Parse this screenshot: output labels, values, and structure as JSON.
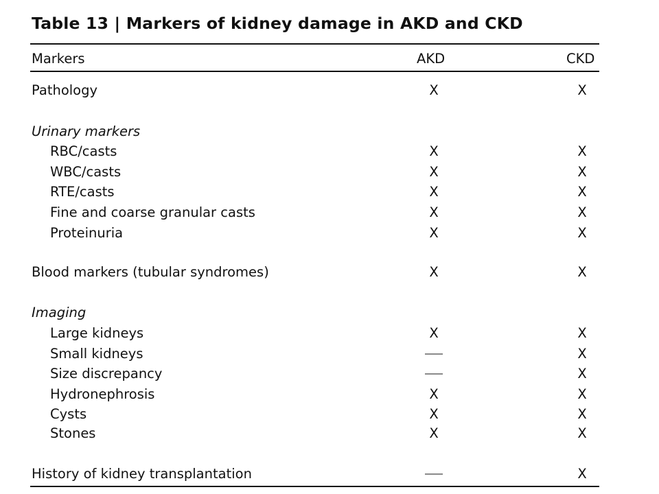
{
  "title": "Table 13 | Markers of kidney damage in AKD and CKD",
  "header": {
    "markers": "Markers",
    "akd": "AKD",
    "ckd": "CKD"
  },
  "rows": [
    {
      "label": "Pathology",
      "akd": "X",
      "ckd": "X"
    },
    {
      "label": "Urinary markers"
    },
    {
      "label": "RBC/casts",
      "akd": "X",
      "ckd": "X"
    },
    {
      "label": "WBC/casts",
      "akd": "X",
      "ckd": "X"
    },
    {
      "label": "RTE/casts",
      "akd": "X",
      "ckd": "X"
    },
    {
      "label": "Fine and coarse granular casts",
      "akd": "X",
      "ckd": "X"
    },
    {
      "label": "Proteinuria",
      "akd": "X",
      "ckd": "X"
    },
    {
      "label": "Blood markers (tubular syndromes)",
      "akd": "X",
      "ckd": "X"
    },
    {
      "label": "Imaging"
    },
    {
      "label": "Large kidneys",
      "akd": "X",
      "ckd": "X"
    },
    {
      "label": "Small kidneys",
      "akd": "—",
      "ckd": "X"
    },
    {
      "label": "Size discrepancy",
      "akd": "—",
      "ckd": "X"
    },
    {
      "label": "Hydronephrosis",
      "akd": "X",
      "ckd": "X"
    },
    {
      "label": "Cysts",
      "akd": "X",
      "ckd": "X"
    },
    {
      "label": "Stones",
      "akd": "X",
      "ckd": "X"
    },
    {
      "label": "History of kidney transplantation",
      "akd": "—",
      "ckd": "X"
    }
  ]
}
